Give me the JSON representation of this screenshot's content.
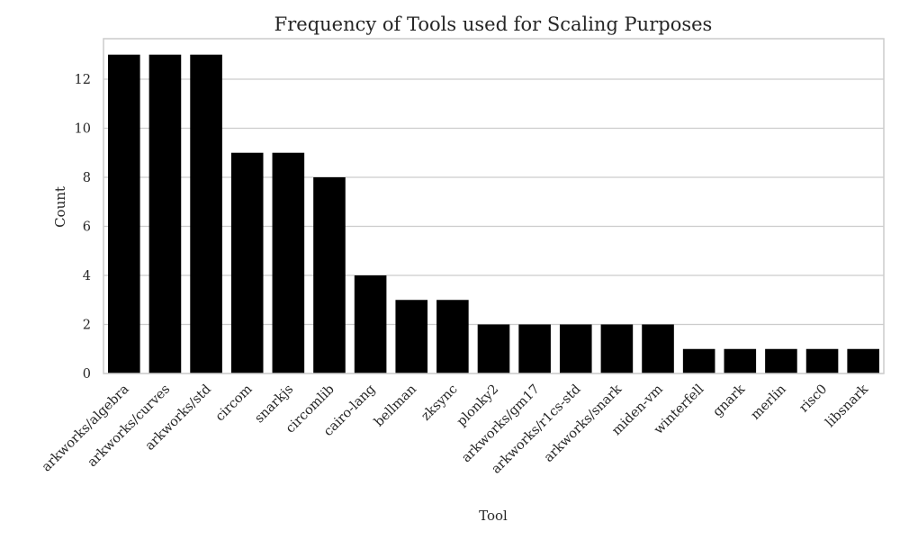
{
  "chart_data": {
    "type": "bar",
    "title": "Frequency of Tools used for Scaling Purposes",
    "xlabel": "Tool",
    "ylabel": "Count",
    "categories": [
      "arkworks/algebra",
      "arkworks/curves",
      "arkworks/std",
      "circom",
      "snarkjs",
      "circomlib",
      "cairo-lang",
      "bellman",
      "zksync",
      "plonky2",
      "arkworks/gm17",
      "arkworks/r1cs-std",
      "arkworks/snark",
      "miden-vm",
      "winterfell",
      "gnark",
      "merlin",
      "risc0",
      "libsnark"
    ],
    "values": [
      13,
      13,
      13,
      9,
      9,
      8,
      4,
      3,
      3,
      2,
      2,
      2,
      2,
      2,
      1,
      1,
      1,
      1,
      1
    ],
    "ylim": [
      0,
      13.65
    ],
    "yticks": [
      0,
      2,
      4,
      6,
      8,
      10,
      12
    ],
    "grid": true,
    "bar_color": "#000000",
    "grid_color": "#cccccc"
  }
}
